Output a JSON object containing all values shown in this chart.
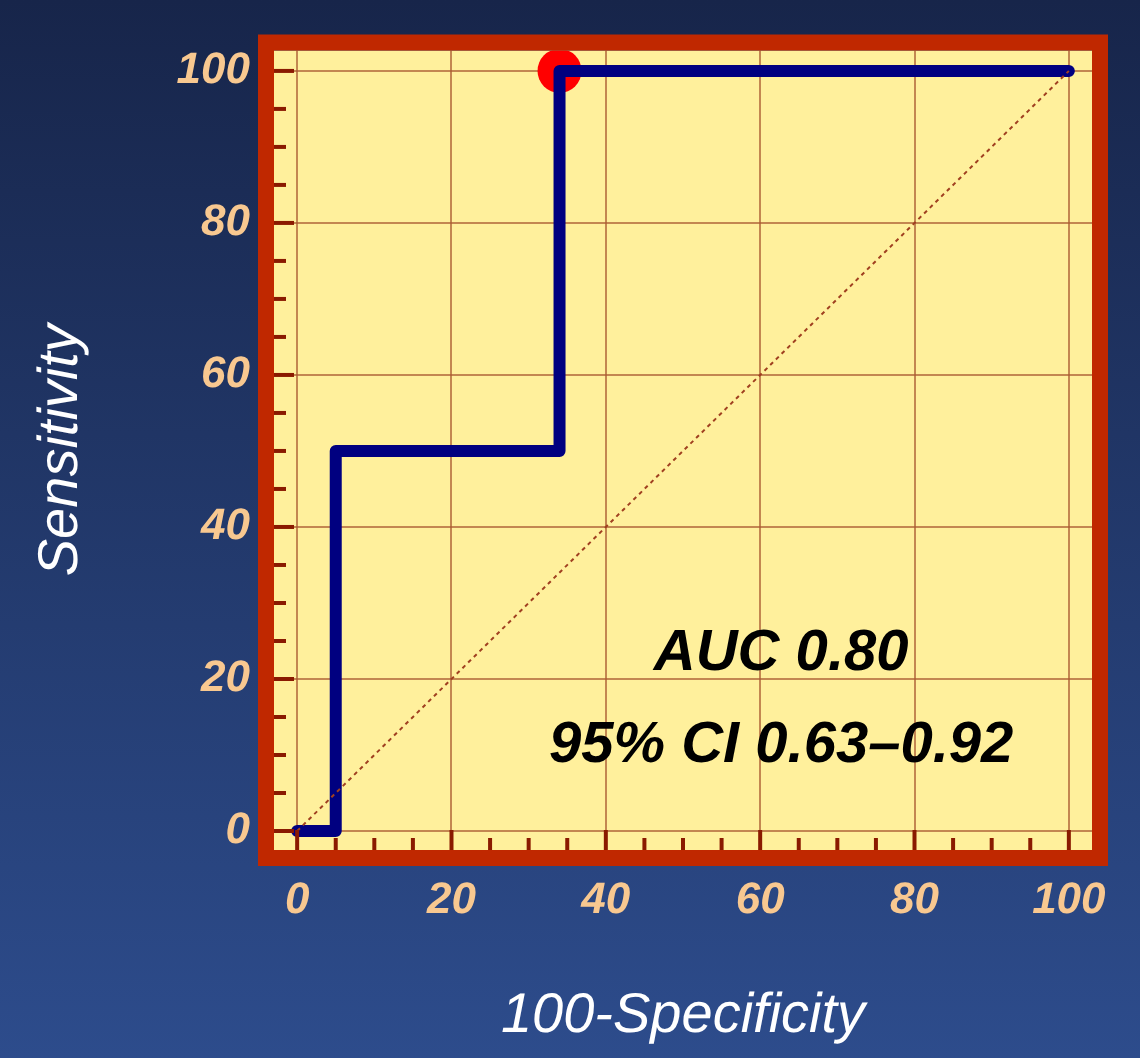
{
  "chart_data": {
    "type": "step",
    "xlabel": "100-Specificity",
    "ylabel": "Sensitivity",
    "annotations": [
      "AUC 0.80",
      "95% CI 0.63–0.92"
    ],
    "xlim": [
      -3,
      103
    ],
    "ylim": [
      -2.5,
      102.7
    ],
    "xticks": [
      0,
      {
        "value": 5,
        "label": null
      },
      {
        "value": 10,
        "label": null
      },
      {
        "value": 15,
        "label": null
      },
      20,
      {
        "value": 25,
        "label": null
      },
      {
        "value": 30,
        "label": null
      },
      {
        "value": 35,
        "label": null
      },
      40,
      {
        "value": 45,
        "label": null
      },
      {
        "value": 50,
        "label": null
      },
      {
        "value": 55,
        "label": null
      },
      60,
      {
        "value": 65,
        "label": null
      },
      {
        "value": 70,
        "label": null
      },
      {
        "value": 75,
        "label": null
      },
      80,
      {
        "value": 85,
        "label": null
      },
      {
        "value": 90,
        "label": null
      },
      {
        "value": 95,
        "label": null
      },
      100
    ],
    "yticks": [
      0,
      {
        "value": 5,
        "label": null
      },
      {
        "value": 10,
        "label": null
      },
      {
        "value": 15,
        "label": null
      },
      20,
      {
        "value": 25,
        "label": null
      },
      {
        "value": 30,
        "label": null
      },
      {
        "value": 35,
        "label": null
      },
      40,
      {
        "value": 45,
        "label": null
      },
      {
        "value": 50,
        "label": null
      },
      {
        "value": 55,
        "label": null
      },
      60,
      {
        "value": 65,
        "label": null
      },
      {
        "value": 70,
        "label": null
      },
      {
        "value": 75,
        "label": null
      },
      80,
      {
        "value": 85,
        "label": null
      },
      {
        "value": 90,
        "label": null
      },
      {
        "value": 95,
        "label": null
      },
      100
    ],
    "grid": true,
    "legend": false,
    "series": [
      {
        "type": "line",
        "x": [
          0,
          100
        ],
        "values": [
          0,
          100
        ],
        "color": "#a04020",
        "line_style": "dotted",
        "marker": "none"
      },
      {
        "x": [
          0,
          5,
          34,
          100
        ],
        "values": [
          0,
          50,
          100,
          100
        ],
        "color": "#000080",
        "marker": "none"
      },
      {
        "type": "scatter",
        "x": [
          34
        ],
        "values": [
          100
        ],
        "color": "#ff0000",
        "marker": "circle"
      }
    ]
  }
}
